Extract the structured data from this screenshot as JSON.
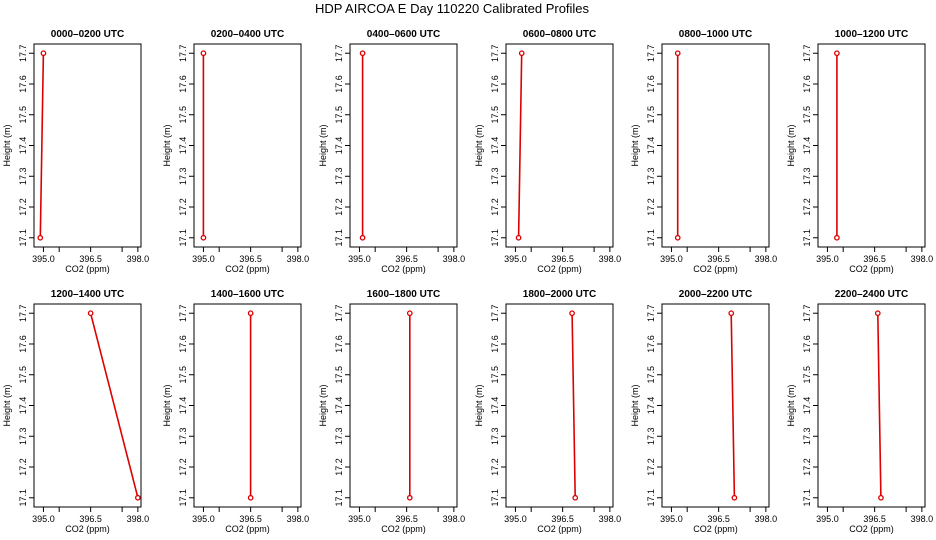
{
  "title": "HDP AIRCOA E  Day 110220  Calibrated Profiles",
  "colors": {
    "series": "#dd0000",
    "axis": "#000000",
    "background": "#ffffff"
  },
  "chart_data": {
    "type": "line",
    "layout": "2 rows x 6 columns of small-multiple profile plots",
    "xlabel": "CO2 (ppm)",
    "ylabel": "Height (m)",
    "xlim": [
      394.7,
      398.1
    ],
    "ylim": [
      17.07,
      17.73
    ],
    "x_ticks": [
      "395.0",
      "396.5",
      "398.0"
    ],
    "x_ticks_unlabeled": [
      "395.5",
      "397.5"
    ],
    "y_ticks": [
      "17.1",
      "17.2",
      "17.3",
      "17.4",
      "17.5",
      "17.6",
      "17.7"
    ],
    "grid": false,
    "legend": "none",
    "panels": [
      {
        "title": "0000–0200 UTC",
        "points": [
          {
            "x": 394.9,
            "y": 17.1
          },
          {
            "x": 395.0,
            "y": 17.7
          }
        ]
      },
      {
        "title": "0200–0400 UTC",
        "points": [
          {
            "x": 395.0,
            "y": 17.1
          },
          {
            "x": 395.0,
            "y": 17.7
          }
        ]
      },
      {
        "title": "0400–0600 UTC",
        "points": [
          {
            "x": 395.1,
            "y": 17.1
          },
          {
            "x": 395.1,
            "y": 17.7
          }
        ]
      },
      {
        "title": "0600–0800 UTC",
        "points": [
          {
            "x": 395.1,
            "y": 17.1
          },
          {
            "x": 395.2,
            "y": 17.7
          }
        ]
      },
      {
        "title": "0800–1000 UTC",
        "points": [
          {
            "x": 395.2,
            "y": 17.1
          },
          {
            "x": 395.2,
            "y": 17.7
          }
        ]
      },
      {
        "title": "1000–1200 UTC",
        "points": [
          {
            "x": 395.3,
            "y": 17.1
          },
          {
            "x": 395.3,
            "y": 17.7
          }
        ]
      },
      {
        "title": "1200–1400 UTC",
        "points": [
          {
            "x": 398.0,
            "y": 17.1
          },
          {
            "x": 396.5,
            "y": 17.7
          }
        ]
      },
      {
        "title": "1400–1600 UTC",
        "points": [
          {
            "x": 396.5,
            "y": 17.1
          },
          {
            "x": 396.5,
            "y": 17.7
          }
        ]
      },
      {
        "title": "1600–1800 UTC",
        "points": [
          {
            "x": 396.6,
            "y": 17.1
          },
          {
            "x": 396.6,
            "y": 17.7
          }
        ]
      },
      {
        "title": "1800–2000 UTC",
        "points": [
          {
            "x": 396.9,
            "y": 17.1
          },
          {
            "x": 396.8,
            "y": 17.7
          }
        ]
      },
      {
        "title": "2000–2200 UTC",
        "points": [
          {
            "x": 397.0,
            "y": 17.1
          },
          {
            "x": 396.9,
            "y": 17.7
          }
        ]
      },
      {
        "title": "2200–2400 UTC",
        "points": [
          {
            "x": 396.7,
            "y": 17.1
          },
          {
            "x": 396.6,
            "y": 17.7
          }
        ]
      }
    ]
  }
}
